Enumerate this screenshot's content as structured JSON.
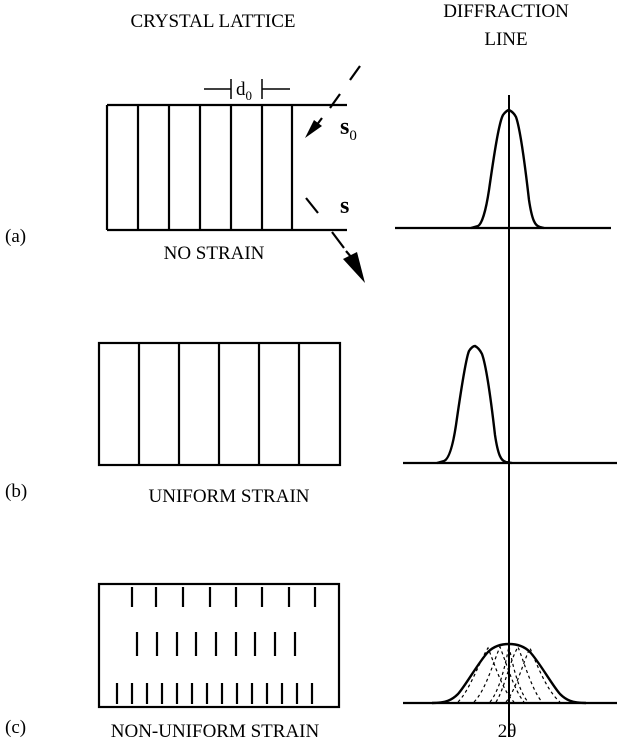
{
  "headings": {
    "crystal_lattice": "CRYSTAL LATTICE",
    "diffraction_line_1": "DIFFRACTION",
    "diffraction_line_2": "LINE"
  },
  "panels": {
    "a": {
      "label": "(a)",
      "caption": "NO STRAIN"
    },
    "b": {
      "label": "(b)",
      "caption": "UNIFORM STRAIN"
    },
    "c": {
      "label": "(c)",
      "caption": "NON-UNIFORM STRAIN"
    }
  },
  "symbols": {
    "d_base": "d",
    "d_sub": "0",
    "s0_base": "s",
    "s0_sub": "0",
    "s": "s",
    "two_theta": "2θ"
  },
  "colors": {
    "ink": "#000000",
    "background": "#ffffff"
  }
}
